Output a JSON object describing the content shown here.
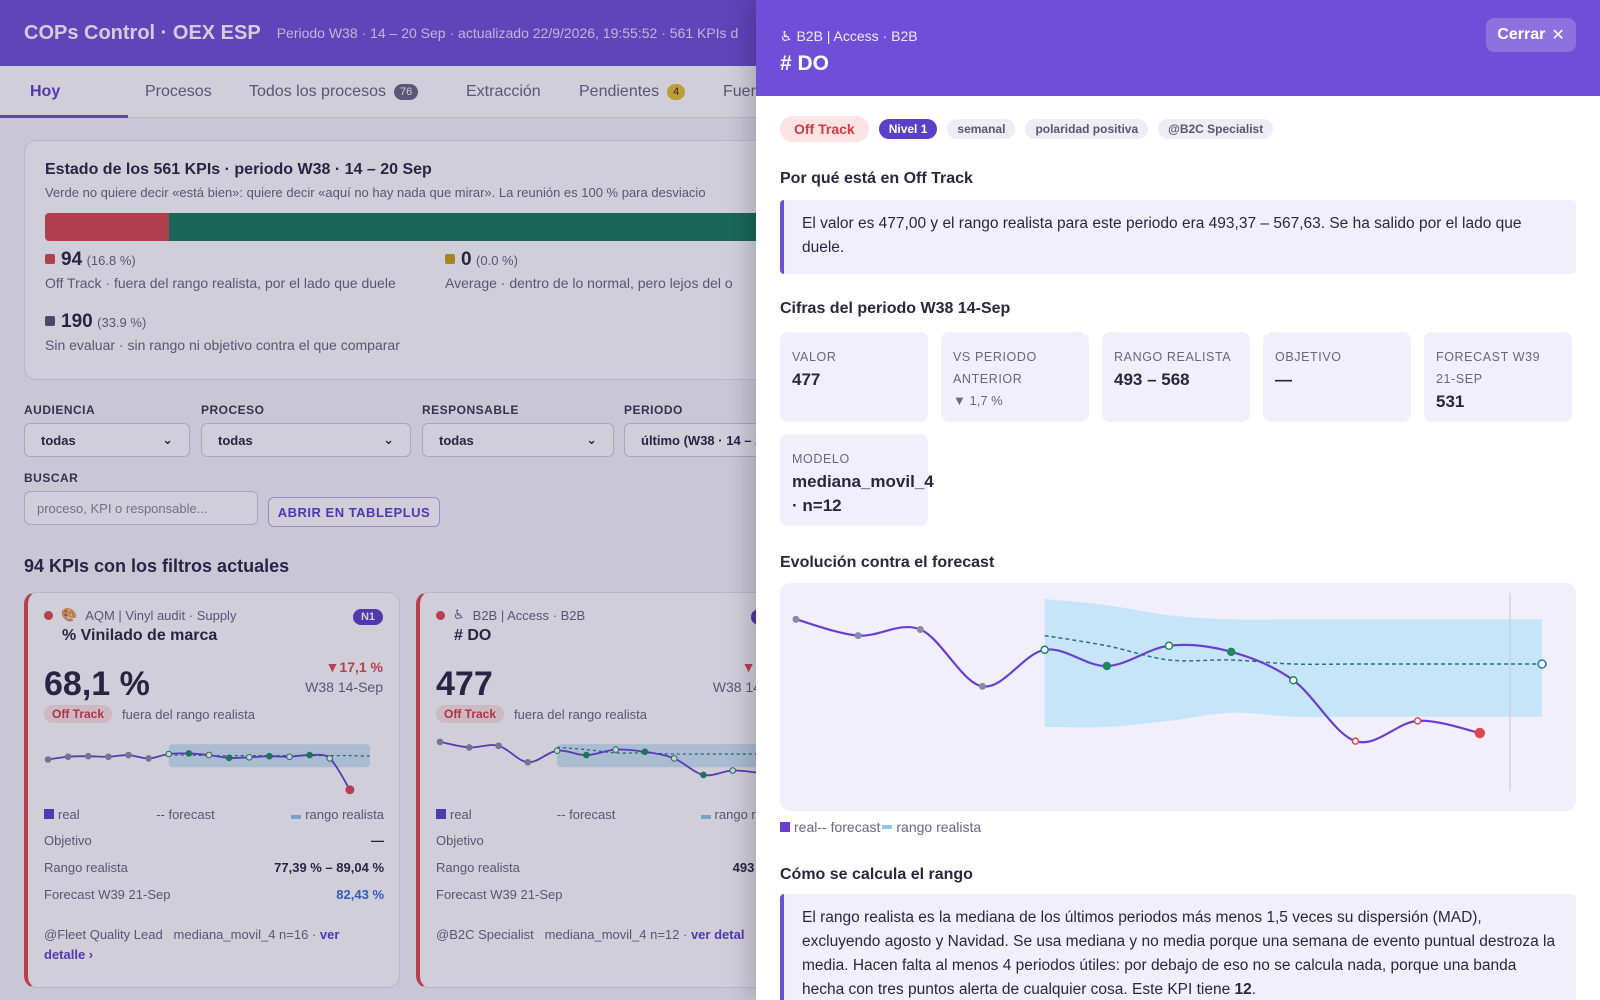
{
  "header": {
    "title": "COPs Control · OEX ESP",
    "subtitle": "Periodo W38 · 14 – 20 Sep · actualizado 22/9/2026, 19:55:52 · 561 KPIs d"
  },
  "tabs": [
    {
      "label": "Hoy"
    },
    {
      "label": "Procesos"
    },
    {
      "label": "Todos los procesos",
      "badge": "76"
    },
    {
      "label": "Extracción"
    },
    {
      "label": "Pendientes",
      "badge": "4"
    },
    {
      "label": "Fuen"
    }
  ],
  "status": {
    "title": "Estado de los 561 KPIs · periodo W38 · 14 – 20 Sep",
    "subtitle": "Verde no quiere decir «está bien»: quiere decir «aquí no hay nada que mirar». La reunión es 100 % para desviacio",
    "segments": [
      {
        "color": "#d9484e",
        "fraction": 0.168
      },
      {
        "color": "#177c5a",
        "fraction": 0.832
      }
    ],
    "stats": [
      {
        "count": "94",
        "pct": "(16.8 %)",
        "desc": "Off Track · fuera del rango realista, por el lado que duele",
        "color": "#d9484e"
      },
      {
        "count": "0",
        "pct": "(0.0 %)",
        "desc": "Average · dentro de lo normal, pero lejos del o",
        "color": "#c9a313"
      },
      {
        "count": "190",
        "pct": "(33.9 %)",
        "desc": "Sin evaluar · sin rango ni objetivo contra el que comparar",
        "color": "#55526a"
      }
    ]
  },
  "filters": {
    "audiencia": {
      "label": "AUDIENCIA",
      "value": "todas"
    },
    "proceso": {
      "label": "PROCESO",
      "value": "todas"
    },
    "responsable": {
      "label": "RESPONSABLE",
      "value": "todas"
    },
    "periodo": {
      "label": "PERIODO",
      "value": "último (W38 · 14 – 2"
    },
    "buscar": {
      "label": "BUSCAR",
      "placeholder": "proceso, KPI o responsable..."
    },
    "open_button": "ABRIR EN TABLEPLUS"
  },
  "results_heading": "94 KPIs con los filtros actuales",
  "cards": [
    {
      "icon": "🎨",
      "path": "AQM | Vinyl audit · Supply",
      "level": "N1",
      "name": "% Vinilado de marca",
      "value": "68,1 %",
      "delta": "▼17,1 %",
      "period": "W38 14-Sep",
      "status": "Off Track",
      "status_desc": "fuera del rango realista",
      "legend": {
        "real": "real",
        "forecast": "-- forecast",
        "range": "rango realista"
      },
      "objetivo_label": "Objetivo",
      "objetivo": "—",
      "rango_label": "Rango realista",
      "rango": "77,39 % – 89,04 %",
      "forecast_label": "Forecast W39 21-Sep",
      "forecast": "82,43 %",
      "owner": "@Fleet Quality Lead",
      "model": "mediana_movil_4 n=16 ·",
      "link": "ver detalle ›"
    },
    {
      "icon": "♿",
      "path": "B2B | Access · B2B",
      "level": "N",
      "name": "# DO",
      "value": "477",
      "delta": "▼1,7",
      "period": "W38 14-S",
      "status": "Off Track",
      "status_desc": "fuera del rango realista",
      "legend": {
        "real": "real",
        "forecast": "-- forecast",
        "range": "rango reali"
      },
      "objetivo_label": "Objetivo",
      "objetivo": "",
      "rango_label": "Rango realista",
      "rango": "493 – 5",
      "forecast_label": "Forecast W39 21-Sep",
      "forecast": "5",
      "owner": "@B2C Specialist",
      "model": "mediana_movil_4 n=12 ·",
      "link": "ver detal"
    }
  ],
  "drawer": {
    "path": "♿ B2B | Access · B2B",
    "title": "# DO",
    "close_label": "Cerrar",
    "tags": {
      "status": "Off Track",
      "level": "Nivel 1",
      "frequency": "semanal",
      "polarity": "polaridad positiva",
      "owner": "@B2C Specialist"
    },
    "why_heading": "Por qué está en Off Track",
    "why_text": "El valor es 477,00 y el rango realista para este periodo era 493,37 – 567,63. Se ha salido por el lado que duele.",
    "figures_heading": "Cifras del periodo W38 14-Sep",
    "figures": {
      "valor": {
        "label": "VALOR",
        "value": "477"
      },
      "vs": {
        "label": "VS PERIODO ANTERIOR",
        "value": "▼ 1,7 %"
      },
      "rango": {
        "label": "RANGO REALISTA",
        "value": "493 – 568"
      },
      "objetivo": {
        "label": "OBJETIVO",
        "value": "—"
      },
      "forecast": {
        "label": "FORECAST W39 21-SEP",
        "value": "531"
      },
      "modelo": {
        "label": "MODELO",
        "value": "mediana_movil_4 · n=12"
      }
    },
    "chart_heading": "Evolución contra el forecast",
    "legend": {
      "real": "real",
      "forecast": "-- forecast",
      "range": "rango realista"
    },
    "method_heading": "Cómo se calcula el rango",
    "method_text": "El rango realista es la mediana de los últimos periodos más menos 1,5 veces su dispersión (MAD), excluyendo agosto y Navidad. Se usa mediana y no media porque una semana de evento puntual destroza la media. Hacen falta al menos 4 periodos útiles: por debajo de eso no se calcula nada, porque una banda hecha con tres puntos alerta de cualquier cosa. Este KPI tiene",
    "method_n": "12"
  },
  "chart_data": [
    {
      "type": "line",
      "chart": "drawer-evolution",
      "x": [
        1,
        2,
        3,
        4,
        5,
        6,
        7,
        8,
        9,
        10,
        11,
        12,
        13
      ],
      "series": [
        {
          "name": "real",
          "values": [
            0.88,
            0.8,
            0.83,
            0.55,
            0.73,
            0.65,
            0.75,
            0.72,
            0.58,
            0.28,
            0.38,
            0.32,
            null
          ],
          "color": "#6a3fd0"
        },
        {
          "name": "forecast",
          "values": [
            null,
            null,
            null,
            null,
            0.8,
            0.75,
            0.68,
            0.68,
            0.66,
            0.66,
            0.66,
            0.66,
            0.66
          ],
          "color": "#2d6f86",
          "dashed": true
        },
        {
          "name": "rango realista",
          "band_low": [
            null,
            null,
            null,
            null,
            0.35,
            0.35,
            0.38,
            0.42,
            0.4,
            0.4,
            0.4,
            0.4,
            0.4
          ],
          "band_high": [
            null,
            null,
            null,
            null,
            0.98,
            0.95,
            0.9,
            0.88,
            0.88,
            0.88,
            0.88,
            0.88,
            0.88
          ],
          "color": "#bfe3f8"
        }
      ],
      "point_status": [
        "gray",
        "gray",
        "gray",
        "gray",
        "green",
        "green",
        "green",
        "green",
        "green",
        "red",
        "red",
        "red",
        "forecast"
      ]
    },
    {
      "type": "line",
      "chart": "card-1-sparkline",
      "series": [
        {
          "name": "real",
          "values": [
            0.5,
            0.55,
            0.56,
            0.55,
            0.58,
            0.52,
            0.6,
            0.61,
            0.58,
            0.53,
            0.54,
            0.56,
            0.55,
            0.58,
            0.52,
            -0.05
          ]
        },
        {
          "name": "forecast",
          "values": [
            null,
            null,
            null,
            null,
            null,
            null,
            0.58,
            0.58,
            0.57,
            0.57,
            0.57,
            0.57,
            0.57,
            0.57,
            0.57,
            0.57,
            0.56
          ]
        }
      ]
    },
    {
      "type": "line",
      "chart": "card-2-sparkline",
      "series": [
        {
          "name": "real",
          "values": [
            0.82,
            0.72,
            0.75,
            0.45,
            0.66,
            0.58,
            0.68,
            0.64,
            0.52,
            0.22,
            0.3,
            0.25
          ]
        },
        {
          "name": "forecast",
          "values": [
            null,
            null,
            null,
            null,
            0.72,
            0.68,
            0.62,
            0.62,
            0.6,
            0.6,
            0.6,
            0.6
          ]
        }
      ]
    }
  ]
}
